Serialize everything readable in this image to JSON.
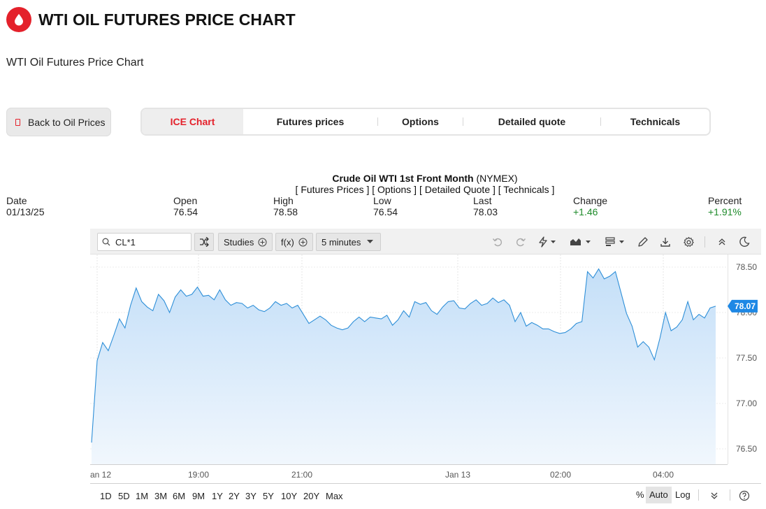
{
  "page": {
    "title": "WTI OIL FUTURES PRICE CHART",
    "subtitle": "WTI Oil Futures Price Chart",
    "brand_color": "#e4212b",
    "logo_icon": "oil-drop-icon"
  },
  "back_button": {
    "label": "Back to Oil Prices",
    "icon": "back-icon"
  },
  "tabs": [
    {
      "label": "ICE Chart",
      "active": true
    },
    {
      "label": "Futures prices"
    },
    {
      "label": "Options"
    },
    {
      "label": "Detailed quote"
    },
    {
      "label": "Technicals"
    }
  ],
  "instrument": {
    "name": "Crude Oil WTI 1st Front Month",
    "exchange": "(NYMEX)",
    "links": "[ Futures Prices ] [ Options ] [ Detailed Quote ] [ Technicals ]"
  },
  "quote": {
    "date_label": "Date",
    "date": "01/13/25",
    "open_label": "Open",
    "open": "76.54",
    "high_label": "High",
    "high": "78.58",
    "low_label": "Low",
    "low": "76.54",
    "last_label": "Last",
    "last": "78.03",
    "change_label": "Change",
    "change": "+1.46",
    "percent_label": "Percent",
    "percent": "+1.91%",
    "positive_color": "#1f8b2b"
  },
  "toolbar": {
    "symbol": "CL*1",
    "studies_label": "Studies",
    "fx_label": "f(x)",
    "interval_label": "5 minutes",
    "icons": [
      "undo-icon",
      "redo-icon",
      "lightning-icon",
      "chart-type-icon",
      "template-icon",
      "pencil-icon",
      "download-icon",
      "gear-icon",
      "collapse-icon",
      "moon-icon"
    ]
  },
  "bottom_bar": {
    "ranges": [
      "1D",
      "5D",
      "1M",
      "3M",
      "6M",
      "9M",
      "1Y",
      "2Y",
      "3Y",
      "5Y",
      "10Y",
      "20Y",
      "Max"
    ],
    "percent_label": "%",
    "auto_label": "Auto",
    "log_label": "Log"
  },
  "chart_data": {
    "type": "area",
    "title": "Crude Oil WTI 1st Front Month (NYMEX)",
    "x_ticks": [
      "an 12",
      "19:00",
      "21:00",
      "Jan 13",
      "02:00",
      "04:00"
    ],
    "y_ticks": [
      "78.50",
      "78.00",
      "77.50",
      "77.00",
      "76.50"
    ],
    "ylim": [
      76.35,
      78.65
    ],
    "last_price_label": "78.07",
    "line_color": "#2e8fd8",
    "fill_color": "#cfe6fb",
    "values": [
      76.57,
      77.47,
      77.67,
      77.58,
      77.75,
      77.93,
      77.83,
      78.08,
      78.27,
      78.12,
      78.06,
      78.02,
      78.2,
      78.13,
      78.0,
      78.17,
      78.25,
      78.18,
      78.2,
      78.28,
      78.18,
      78.19,
      78.14,
      78.25,
      78.14,
      78.08,
      78.11,
      78.1,
      78.05,
      78.08,
      78.03,
      78.01,
      78.05,
      78.12,
      78.08,
      78.1,
      78.05,
      78.08,
      77.98,
      77.88,
      77.92,
      77.96,
      77.92,
      77.86,
      77.83,
      77.81,
      77.83,
      77.9,
      77.95,
      77.9,
      77.95,
      77.94,
      77.93,
      77.97,
      77.86,
      77.92,
      78.02,
      77.95,
      78.12,
      78.09,
      78.11,
      78.02,
      77.98,
      78.06,
      78.12,
      78.13,
      78.05,
      78.04,
      78.1,
      78.14,
      78.08,
      78.1,
      78.16,
      78.11,
      78.14,
      78.08,
      77.9,
      78.0,
      77.85,
      77.89,
      77.86,
      77.82,
      77.82,
      77.79,
      77.77,
      77.78,
      77.82,
      77.88,
      77.9,
      78.45,
      78.38,
      78.48,
      78.37,
      78.4,
      78.45,
      78.22,
      77.99,
      77.85,
      77.62,
      77.68,
      77.62,
      77.48,
      77.72,
      78.0,
      77.8,
      77.84,
      77.92,
      78.12,
      77.92,
      77.98,
      77.94,
      78.05,
      78.07
    ],
    "grid": true
  }
}
